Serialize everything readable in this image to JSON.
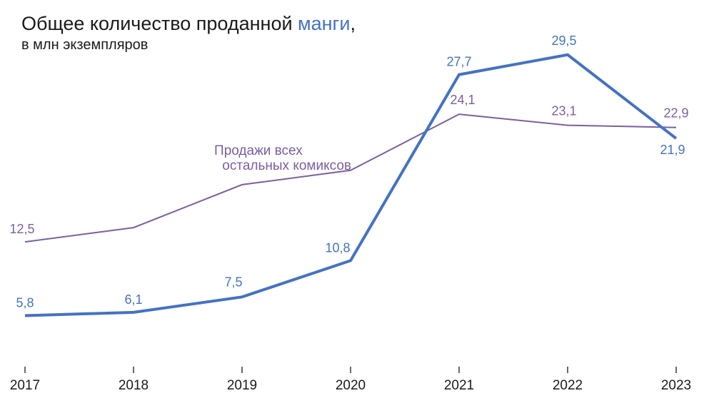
{
  "chart_data": {
    "type": "line",
    "title_parts": [
      "Общее количество проданной ",
      "манги",
      ","
    ],
    "subtitle": "в млн экземпляров",
    "categories": [
      "2017",
      "2018",
      "2019",
      "2020",
      "2021",
      "2022",
      "2023"
    ],
    "series": [
      {
        "key": "manga",
        "values": [
          5.8,
          6.1,
          7.5,
          10.8,
          27.7,
          29.5,
          21.9
        ],
        "labels": [
          "5,8",
          "6,1",
          "7,5",
          "10,8",
          "27,7",
          "29,5",
          "21,9"
        ],
        "color": "#4472c4"
      },
      {
        "key": "other",
        "name_lines": [
          "Продажи всех",
          "остальных комиксов"
        ],
        "values": [
          12.5,
          13.8,
          17.7,
          19.0,
          24.1,
          23.1,
          22.9
        ],
        "labels": [
          "12,5",
          "",
          "",
          "",
          "24,1",
          "23,1",
          "22,9"
        ],
        "color": "#7b5fa0"
      }
    ],
    "grid": false,
    "legend": "none"
  }
}
